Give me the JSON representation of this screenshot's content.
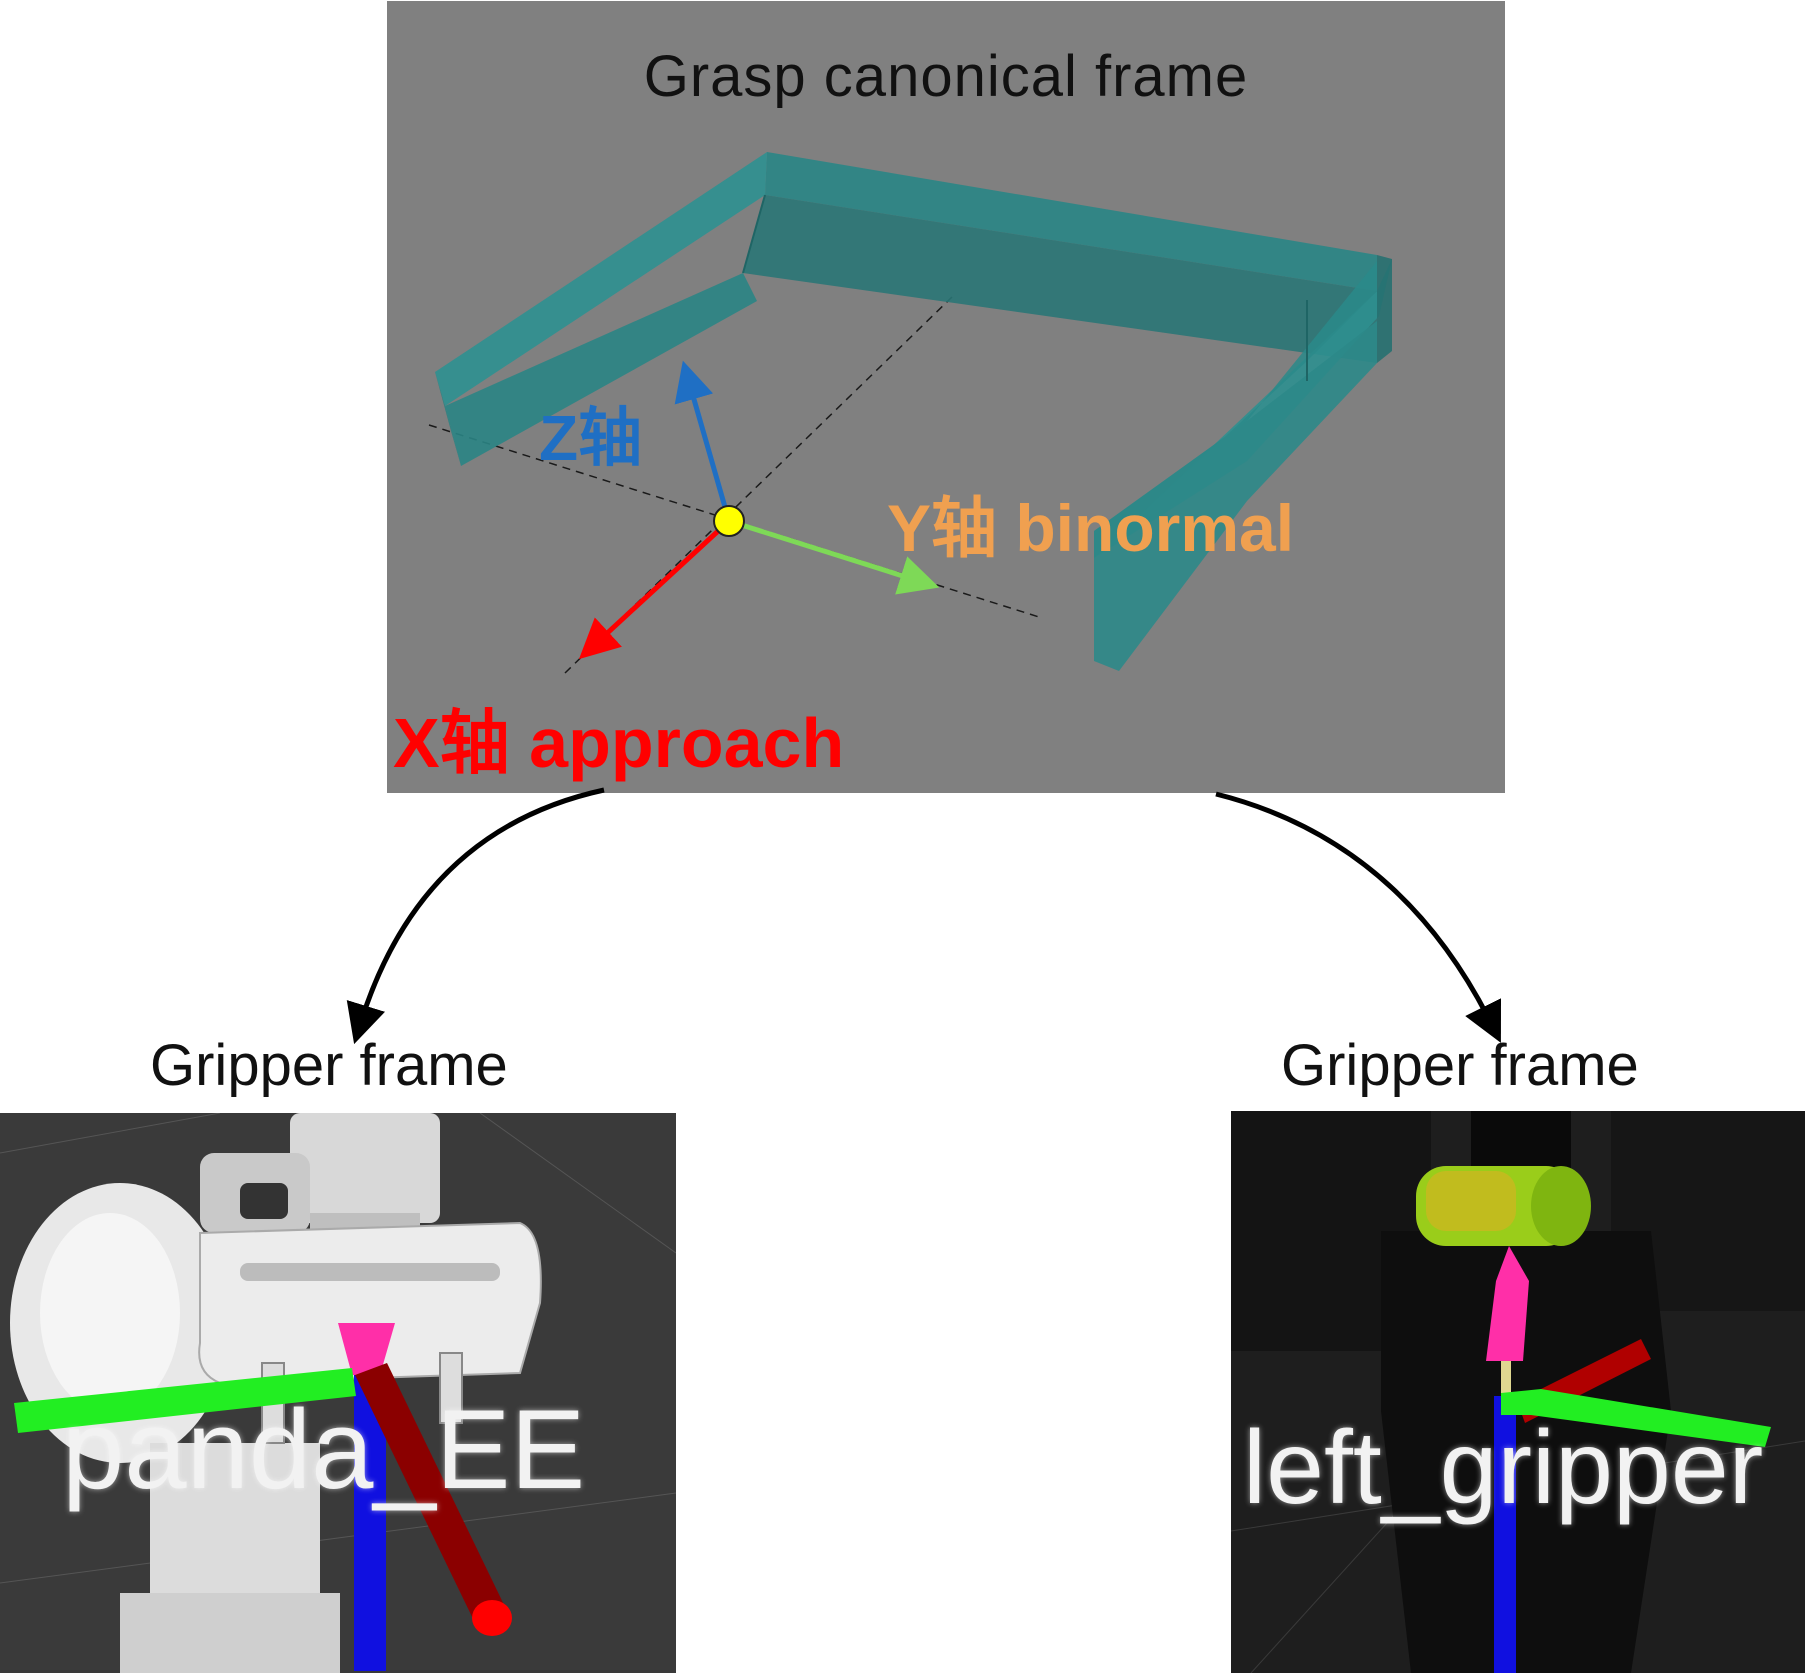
{
  "canonical": {
    "title": "Grasp canonical frame",
    "z_label": "Z轴",
    "y_label": "Y轴 binormal",
    "x_label": "X轴 approach"
  },
  "left_gripper": {
    "title": "Gripper frame",
    "frame_label": "panda_EE"
  },
  "right_gripper": {
    "title": "Gripper frame",
    "frame_label": "left_gripper"
  },
  "colors": {
    "x_axis": "#ff0000",
    "y_axis": "#7ed957",
    "z_axis": "#1f6fc4",
    "y_label": "#f0a050",
    "gripper_box": "#2a8a8a",
    "origin": "#ffff00",
    "panel_bg": "#808080"
  }
}
